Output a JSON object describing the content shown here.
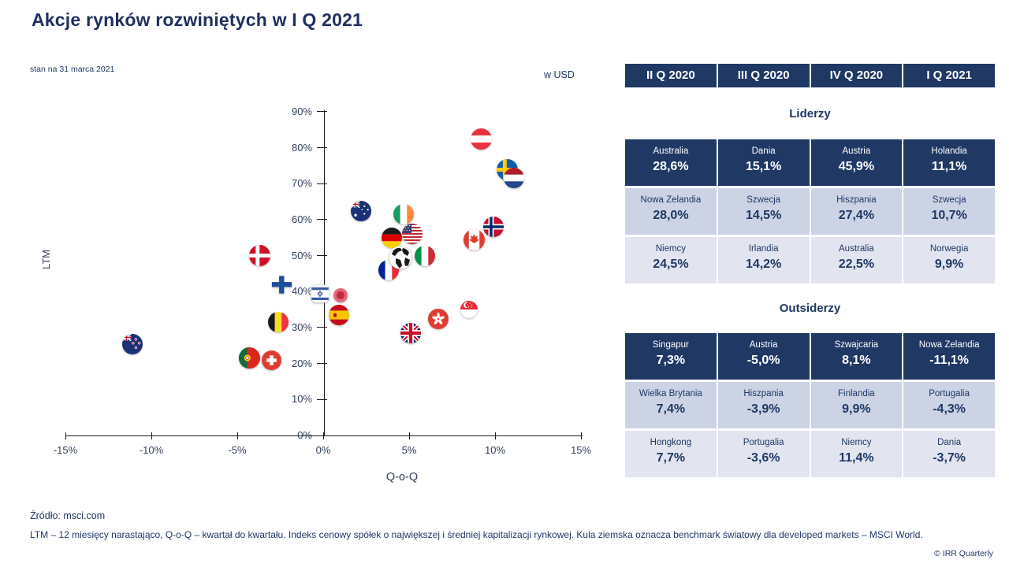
{
  "header": {
    "title": "Akcje rynków rozwiniętych w I Q 2021",
    "subtitle": "stan na 31 marca 2021",
    "currency_label": "w USD"
  },
  "chart_data": {
    "type": "scatter",
    "xlabel": "Q-o-Q",
    "ylabel": "LTM",
    "xlim": [
      -15,
      15
    ],
    "ylim": [
      0,
      90
    ],
    "x_tick_values": [
      -15,
      -10,
      -5,
      0,
      5,
      10,
      15
    ],
    "x_ticks": [
      "-15%",
      "-10%",
      "-5%",
      "0%",
      "5%",
      "10%",
      "15%"
    ],
    "y_tick_values": [
      0,
      10,
      20,
      30,
      40,
      50,
      60,
      70,
      80,
      90
    ],
    "y_ticks": [
      "0%",
      "10%",
      "20%",
      "30%",
      "40%",
      "50%",
      "60%",
      "70%",
      "80%",
      "90%"
    ],
    "grid": false,
    "legend": "none",
    "marker_style": "country-flag-circle",
    "points": [
      {
        "country": "Nowa Zelandia",
        "code": "nz",
        "x": -11.1,
        "y": 25.5,
        "size": 26
      },
      {
        "country": "Portugalia",
        "code": "pt",
        "x": -4.3,
        "y": 21.5,
        "size": 27
      },
      {
        "country": "Szwajcaria",
        "code": "ch",
        "x": -3.0,
        "y": 21.0,
        "size": 25
      },
      {
        "country": "Belgia",
        "code": "be",
        "x": -2.6,
        "y": 31.5,
        "size": 26
      },
      {
        "country": "Dania",
        "code": "dk",
        "x": -3.7,
        "y": 50.0,
        "size": 27
      },
      {
        "country": "Finlandia",
        "code": "fi",
        "x": -2.4,
        "y": 42.0,
        "size": 29
      },
      {
        "country": "Izrael",
        "code": "il",
        "x": -0.2,
        "y": 39.5,
        "size": 24
      },
      {
        "country": "Japonia",
        "code": "jp",
        "x": 1.0,
        "y": 39.0,
        "size": 18
      },
      {
        "country": "Hiszpania",
        "code": "es",
        "x": 0.9,
        "y": 33.5,
        "size": 26
      },
      {
        "country": "Australia",
        "code": "au",
        "x": 2.2,
        "y": 62.5,
        "size": 26
      },
      {
        "country": "Irlandia",
        "code": "ie",
        "x": 4.7,
        "y": 61.5,
        "size": 26
      },
      {
        "country": "Niemcy",
        "code": "de",
        "x": 4.0,
        "y": 55.0,
        "size": 26
      },
      {
        "country": "USA",
        "code": "us",
        "x": 5.2,
        "y": 56.0,
        "size": 26
      },
      {
        "country": "Francja",
        "code": "fr",
        "x": 3.8,
        "y": 46.0,
        "size": 26
      },
      {
        "country": "Włochy",
        "code": "it",
        "x": 5.9,
        "y": 50.0,
        "size": 26
      },
      {
        "country": "Świat (MSCI World)",
        "code": "world",
        "x": 4.5,
        "y": 49.5,
        "size": 30
      },
      {
        "country": "Wielka Brytania",
        "code": "gb",
        "x": 5.1,
        "y": 28.5,
        "size": 26
      },
      {
        "country": "Hongkong",
        "code": "hk",
        "x": 6.7,
        "y": 32.5,
        "size": 26
      },
      {
        "country": "Singapur",
        "code": "sg",
        "x": 8.5,
        "y": 35.0,
        "size": 22
      },
      {
        "country": "Kanada",
        "code": "ca",
        "x": 8.8,
        "y": 54.5,
        "size": 27
      },
      {
        "country": "Norwegia",
        "code": "no",
        "x": 9.9,
        "y": 58.0,
        "size": 26
      },
      {
        "country": "Austria",
        "code": "at",
        "x": 9.2,
        "y": 82.5,
        "size": 27
      },
      {
        "country": "Szwecja",
        "code": "se",
        "x": 10.7,
        "y": 74.0,
        "size": 27
      },
      {
        "country": "Holandia",
        "code": "nl",
        "x": 11.1,
        "y": 71.5,
        "size": 26
      }
    ]
  },
  "table": {
    "quarters": [
      "II Q 2020",
      "III Q 2020",
      "IV Q 2020",
      "I Q 2021"
    ],
    "sections": [
      {
        "title": "Liderzy",
        "rows": [
          [
            {
              "country": "Australia",
              "value": "28,6%"
            },
            {
              "country": "Dania",
              "value": "15,1%"
            },
            {
              "country": "Austria",
              "value": "45,9%"
            },
            {
              "country": "Holandia",
              "value": "11,1%"
            }
          ],
          [
            {
              "country": "Nowa Zelandia",
              "value": "28,0%"
            },
            {
              "country": "Szwecja",
              "value": "14,5%"
            },
            {
              "country": "Hiszpania",
              "value": "27,4%"
            },
            {
              "country": "Szwecja",
              "value": "10,7%"
            }
          ],
          [
            {
              "country": "Niemcy",
              "value": "24,5%"
            },
            {
              "country": "Irlandia",
              "value": "14,2%"
            },
            {
              "country": "Australia",
              "value": "22,5%"
            },
            {
              "country": "Norwegia",
              "value": "9,9%"
            }
          ]
        ]
      },
      {
        "title": "Outsiderzy",
        "rows": [
          [
            {
              "country": "Singapur",
              "value": "7,3%"
            },
            {
              "country": "Austria",
              "value": "-5,0%"
            },
            {
              "country": "Szwajcaria",
              "value": "8,1%"
            },
            {
              "country": "Nowa Zelandia",
              "value": "-11,1%"
            }
          ],
          [
            {
              "country": "Wielka Brytania",
              "value": "7,4%"
            },
            {
              "country": "Hiszpania",
              "value": "-3,9%"
            },
            {
              "country": "Finlandia",
              "value": "9,9%"
            },
            {
              "country": "Portugalia",
              "value": "-4,3%"
            }
          ],
          [
            {
              "country": "Hongkong",
              "value": "7,7%"
            },
            {
              "country": "Portugalia",
              "value": "-3,6%"
            },
            {
              "country": "Niemcy",
              "value": "11,4%"
            },
            {
              "country": "Dania",
              "value": "-3,7%"
            }
          ]
        ]
      }
    ]
  },
  "footer": {
    "source": "Źródło: msci.com",
    "footnote": "LTM – 12 miesięcy narastająco, Q-o-Q – kwartał do kwartału. Indeks cenowy spółek o największej i średniej kapitalizacji rynkowej. Kula ziemska oznacza benchmark światowy dla developed markets – MSCI World.",
    "copyright": "© IRR Quarterly"
  },
  "colors": {
    "navy": "#1F3864",
    "title_navy": "#1F3061",
    "row_light1": "#CBD3E4",
    "row_light2": "#E2E5F0",
    "axis": "#1a1a1a",
    "tick_label": "#33425b"
  }
}
